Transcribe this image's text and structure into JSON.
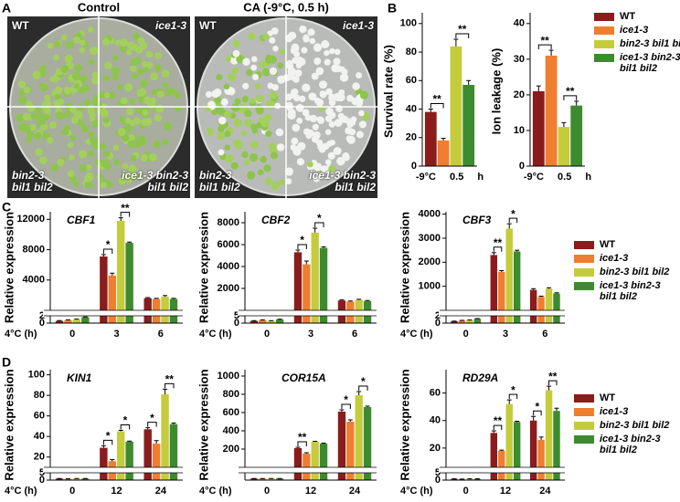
{
  "panel_labels": [
    "A",
    "B",
    "C",
    "D"
  ],
  "photos": [
    {
      "title": "Control",
      "labels": [
        "WT",
        "ice1-3",
        "bin2-3 bil1 bil2",
        "ice1-3 bin2-3 bil1 bil2"
      ]
    },
    {
      "title": "CA (-9°C, 0.5 h)",
      "labels": [
        "WT",
        "ice1-3",
        "bin2-3 bil1 bil2",
        "ice1-3 bin2-3 bil1 bil2"
      ]
    }
  ],
  "chart_data": [
    {
      "type": "bar",
      "ylabel": "Survival rate (%)",
      "categories": [
        "-9°C 0.5 h"
      ],
      "ylim": [
        0,
        105
      ],
      "yticks": [
        0,
        20,
        40,
        60,
        80,
        100
      ],
      "series": [
        {
          "color": "#8b1c1c",
          "values": [
            38
          ],
          "errors": [
            2
          ]
        },
        {
          "color": "#f07e30",
          "values": [
            18
          ],
          "errors": [
            1.5
          ]
        },
        {
          "color": "#c5cc3c",
          "values": [
            84
          ],
          "errors": [
            5
          ]
        },
        {
          "color": "#3d8b2f",
          "values": [
            57
          ],
          "errors": [
            3
          ]
        }
      ],
      "annotations": [
        {
          "text": "**",
          "category": 0,
          "series": [
            0,
            1
          ]
        },
        {
          "text": "**",
          "category": 0,
          "series": [
            2,
            3
          ]
        }
      ]
    },
    {
      "type": "bar",
      "ylabel": "Ion leakage (%)",
      "categories": [
        "-9°C 0.5 h"
      ],
      "ylim": [
        0,
        42
      ],
      "yticks": [
        0,
        10,
        20,
        30,
        40
      ],
      "series": [
        {
          "name": "WT",
          "color": "#8b1c1c",
          "values": [
            21
          ],
          "errors": [
            1.5
          ]
        },
        {
          "name": "ice1-3",
          "color": "#f07e30",
          "values": [
            31
          ],
          "errors": [
            1.5
          ]
        },
        {
          "name": "bin2-3 bil1 bil2",
          "color": "#c5cc3c",
          "values": [
            11
          ],
          "errors": [
            1.2
          ]
        },
        {
          "name": "ice1-3 bin2-3 bil1 bil2",
          "color": "#3d8b2f",
          "values": [
            17
          ],
          "errors": [
            1.2
          ]
        }
      ],
      "annotations": [
        {
          "text": "**",
          "category": 0,
          "series": [
            0,
            1
          ]
        },
        {
          "text": "**",
          "category": 0,
          "series": [
            2,
            3
          ]
        }
      ]
    },
    {
      "type": "broken-bar",
      "title": "CBF1",
      "ylabel": "Relative expression",
      "xlabel": "4°C (h)",
      "categories": [
        "0",
        "3",
        "6"
      ],
      "ylim": [
        0,
        13000
      ],
      "yticks": [
        4000,
        8000,
        12000
      ],
      "ylim_low": [
        0,
        2
      ],
      "yticks_low": [
        0,
        2
      ],
      "series": [
        {
          "color": "#8b1c1c",
          "values": [
            0.6,
            7100,
            1600
          ],
          "errors": [
            0.1,
            250,
            80
          ]
        },
        {
          "color": "#f07e30",
          "values": [
            0.8,
            4600,
            1500
          ],
          "errors": [
            0.1,
            300,
            80
          ]
        },
        {
          "color": "#c5cc3c",
          "values": [
            1.0,
            11800,
            1800
          ],
          "errors": [
            0.1,
            400,
            150
          ]
        },
        {
          "color": "#3d8b2f",
          "values": [
            1.6,
            8900,
            1500
          ],
          "errors": [
            0.1,
            100,
            80
          ]
        }
      ],
      "annotations": [
        {
          "text": "*",
          "category": 1,
          "series": [
            0,
            1
          ]
        },
        {
          "text": "**",
          "category": 1,
          "series": [
            2,
            3
          ]
        }
      ]
    },
    {
      "type": "broken-bar",
      "title": "CBF2",
      "ylabel": "Relative expression",
      "xlabel": "4°C (h)",
      "categories": [
        "0",
        "3",
        "6"
      ],
      "ylim": [
        0,
        9000
      ],
      "yticks": [
        2000,
        4000,
        6000,
        8000
      ],
      "ylim_low": [
        0,
        5
      ],
      "yticks_low": [
        0,
        5
      ],
      "series": [
        {
          "color": "#8b1c1c",
          "values": [
            1.5,
            5300,
            900
          ],
          "errors": [
            0.2,
            200,
            50
          ]
        },
        {
          "color": "#f07e30",
          "values": [
            2.0,
            4200,
            800
          ],
          "errors": [
            0.2,
            300,
            50
          ]
        },
        {
          "color": "#c5cc3c",
          "values": [
            1.5,
            7100,
            950
          ],
          "errors": [
            0.2,
            400,
            60
          ]
        },
        {
          "color": "#3d8b2f",
          "values": [
            2.5,
            5700,
            850
          ],
          "errors": [
            0.2,
            100,
            50
          ]
        }
      ],
      "annotations": [
        {
          "text": "*",
          "category": 1,
          "series": [
            0,
            1
          ]
        },
        {
          "text": "*",
          "category": 1,
          "series": [
            2,
            3
          ]
        }
      ]
    },
    {
      "type": "broken-bar",
      "title": "CBF3",
      "ylabel": "Relative expression",
      "xlabel": "4°C (h)",
      "categories": [
        "0",
        "3",
        "6"
      ],
      "ylim": [
        0,
        4100
      ],
      "yticks": [
        1000,
        2000,
        3000,
        4000
      ],
      "ylim_low": [
        0,
        2
      ],
      "yticks_low": [
        0,
        2
      ],
      "series": [
        {
          "name": "WT",
          "color": "#8b1c1c",
          "values": [
            0.5,
            2300,
            850
          ],
          "errors": [
            0.05,
            100,
            50
          ]
        },
        {
          "name": "ice1-3",
          "color": "#f07e30",
          "values": [
            0.7,
            1600,
            560
          ],
          "errors": [
            0.05,
            50,
            30
          ]
        },
        {
          "name": "bin2-3 bil1 bil2",
          "color": "#c5cc3c",
          "values": [
            0.8,
            3400,
            900
          ],
          "errors": [
            0.05,
            200,
            40
          ]
        },
        {
          "name": "ice1-3 bin2-3 bil1 bil2",
          "color": "#3d8b2f",
          "values": [
            1.2,
            2450,
            700
          ],
          "errors": [
            0.05,
            50,
            30
          ]
        }
      ],
      "annotations": [
        {
          "text": "**",
          "category": 1,
          "series": [
            0,
            1
          ]
        },
        {
          "text": "*",
          "category": 1,
          "series": [
            2,
            3
          ]
        }
      ]
    },
    {
      "type": "broken-bar",
      "title": "KIN1",
      "ylabel": "Relative expression",
      "xlabel": "4°C (h)",
      "categories": [
        "0",
        "12",
        "24"
      ],
      "ylim": [
        10,
        105
      ],
      "yticks": [
        20,
        40,
        60,
        80,
        100
      ],
      "ylim_low": [
        0,
        5
      ],
      "yticks_low": [
        0,
        5
      ],
      "series": [
        {
          "color": "#8b1c1c",
          "values": [
            1.0,
            29,
            47
          ],
          "errors": [
            0.1,
            2,
            1.5
          ]
        },
        {
          "color": "#f07e30",
          "values": [
            0.8,
            16,
            33
          ],
          "errors": [
            0.1,
            1.5,
            3
          ]
        },
        {
          "color": "#c5cc3c",
          "values": [
            1.0,
            45,
            81
          ],
          "errors": [
            0.1,
            1,
            5
          ]
        },
        {
          "color": "#3d8b2f",
          "values": [
            1.0,
            35,
            52
          ],
          "errors": [
            0.1,
            0.5,
            1
          ]
        }
      ],
      "annotations": [
        {
          "text": "*",
          "category": 1,
          "series": [
            0,
            1
          ]
        },
        {
          "text": "*",
          "category": 1,
          "series": [
            2,
            3
          ]
        },
        {
          "text": "*",
          "category": 2,
          "series": [
            0,
            1
          ]
        },
        {
          "text": "**",
          "category": 2,
          "series": [
            2,
            3
          ]
        }
      ]
    },
    {
      "type": "broken-bar",
      "title": "COR15A",
      "ylabel": "Relative expression",
      "xlabel": "4°C (h)",
      "categories": [
        "0",
        "12",
        "24"
      ],
      "ylim": [
        0,
        1070
      ],
      "yticks": [
        200,
        400,
        600,
        800,
        1000
      ],
      "ylim_low": [
        0,
        5
      ],
      "series": [
        {
          "color": "#8b1c1c",
          "values": [
            1,
            210,
            610
          ],
          "errors": [
            0.1,
            10,
            20
          ]
        },
        {
          "color": "#f07e30",
          "values": [
            1,
            150,
            500
          ],
          "errors": [
            0.1,
            10,
            20
          ]
        },
        {
          "color": "#c5cc3c",
          "values": [
            1,
            280,
            790
          ],
          "errors": [
            0.1,
            5,
            40
          ]
        },
        {
          "color": "#3d8b2f",
          "values": [
            1,
            260,
            660
          ],
          "errors": [
            0.1,
            5,
            10
          ]
        }
      ],
      "annotations": [
        {
          "text": "**",
          "category": 1,
          "series": [
            0,
            1
          ]
        },
        {
          "text": "*",
          "category": 2,
          "series": [
            0,
            1
          ]
        },
        {
          "text": "*",
          "category": 2,
          "series": [
            2,
            3
          ]
        }
      ]
    },
    {
      "type": "broken-bar",
      "title": "RD29A",
      "ylabel": "Relative expression",
      "xlabel": "4°C (h)",
      "categories": [
        "0",
        "12",
        "24"
      ],
      "ylim": [
        6,
        77
      ],
      "yticks": [
        20,
        40,
        60
      ],
      "ylim_low": [
        0,
        5
      ],
      "yticks_low": [
        0,
        5
      ],
      "series": [
        {
          "name": "WT",
          "color": "#8b1c1c",
          "values": [
            0.8,
            31,
            40
          ],
          "errors": [
            0.1,
            1.5,
            3
          ]
        },
        {
          "name": "ice1-3",
          "color": "#f07e30",
          "values": [
            0.6,
            18,
            26
          ],
          "errors": [
            0.1,
            0.5,
            2
          ]
        },
        {
          "name": "bin2-3 bil1 bil2",
          "color": "#c5cc3c",
          "values": [
            0.8,
            52,
            62
          ],
          "errors": [
            0.1,
            3,
            3
          ]
        },
        {
          "name": "ice1-3 bin2-3 bil1 bil2",
          "color": "#3d8b2f",
          "values": [
            0.8,
            39,
            47
          ],
          "errors": [
            0.1,
            0.5,
            2
          ]
        }
      ],
      "annotations": [
        {
          "text": "**",
          "category": 1,
          "series": [
            0,
            1
          ]
        },
        {
          "text": "*",
          "category": 1,
          "series": [
            2,
            3
          ]
        },
        {
          "text": "*",
          "category": 2,
          "series": [
            0,
            1
          ]
        },
        {
          "text": "**",
          "category": 2,
          "series": [
            2,
            3
          ]
        }
      ]
    }
  ]
}
